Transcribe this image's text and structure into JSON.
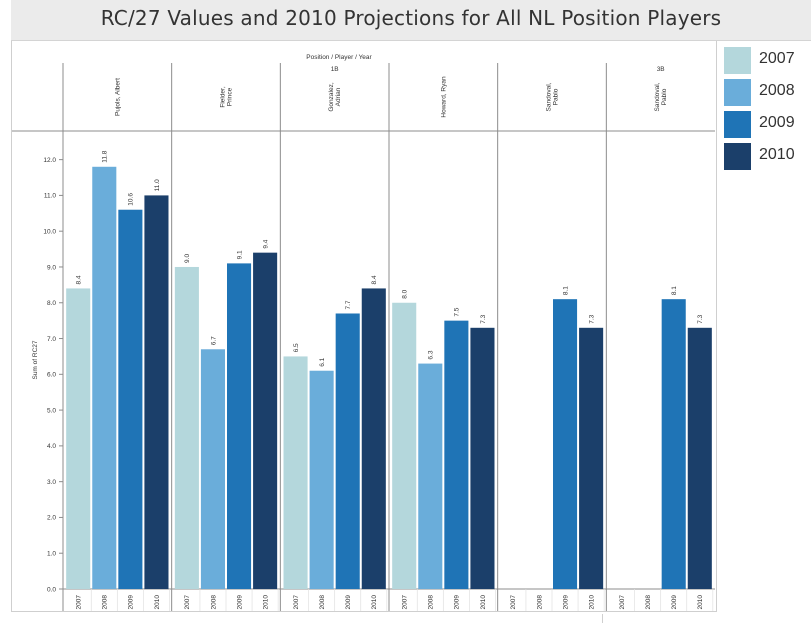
{
  "header": {
    "title": "RC/27 Values and 2010 Projections for All NL Position Players"
  },
  "colors": {
    "2007": "#b4d7dc",
    "2008": "#6aadda",
    "2009": "#1f74b6",
    "2010": "#1b3f6a",
    "axis": "#8c8c8c",
    "text": "#333333"
  },
  "chart_data": {
    "type": "bar",
    "title": "RC/27 Values and 2010 Projections for All NL Position Players",
    "column_header": "Position / Player / Year",
    "ylabel": "Sum of RC27",
    "ylim": [
      0,
      12.8
    ],
    "yticks": [
      "0.0",
      "1.0",
      "2.0",
      "3.0",
      "4.0",
      "5.0",
      "6.0",
      "7.0",
      "8.0",
      "9.0",
      "10.0",
      "11.0",
      "12.0"
    ],
    "grid": false,
    "legend_position": "right",
    "series_names": [
      "2007",
      "2008",
      "2009",
      "2010"
    ],
    "positions": [
      {
        "name": "1B",
        "players": [
          {
            "name": "Pujols, Albert",
            "values": [
              8.4,
              11.8,
              10.6,
              11.0
            ],
            "labels": [
              "8.4",
              "11.8",
              "10.6",
              "11.0"
            ]
          },
          {
            "name": "Fielder, Prince",
            "values": [
              9.0,
              6.7,
              9.1,
              9.4
            ],
            "labels": [
              "9.0",
              "6.7",
              "9.1",
              "9.4"
            ]
          },
          {
            "name": "Gonzalez, Adrian",
            "values": [
              6.5,
              6.1,
              7.7,
              8.4
            ],
            "labels": [
              "6.5",
              "6.1",
              "7.7",
              "8.4"
            ]
          },
          {
            "name": "Howard, Ryan",
            "values": [
              8.0,
              6.3,
              7.5,
              7.3
            ],
            "labels": [
              "8.0",
              "6.3",
              "7.5",
              "7.3"
            ]
          },
          {
            "name": "Sandoval, Pablo",
            "values": [
              null,
              null,
              8.1,
              7.3
            ],
            "labels": [
              "",
              "",
              "8.1",
              "7.3"
            ]
          }
        ]
      },
      {
        "name": "3B",
        "players": [
          {
            "name": "Sandoval, Pablo",
            "values": [
              null,
              null,
              8.1,
              7.3
            ],
            "labels": [
              "",
              "",
              "8.1",
              "7.3"
            ]
          }
        ]
      }
    ]
  }
}
